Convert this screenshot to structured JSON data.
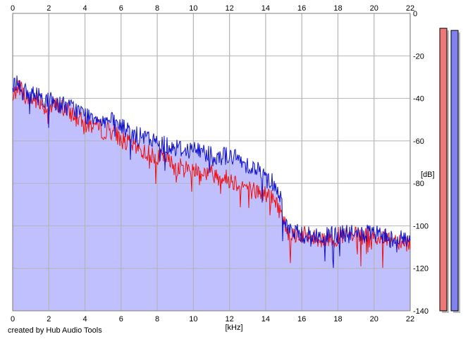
{
  "credit": "created by Hub Audio Tools",
  "colors": {
    "background": "#ffffff",
    "plot_background": "#ffffff",
    "grid": "#b4b4b4",
    "fill": "#c0c0ff",
    "left_channel": "#ee1111",
    "right_channel": "#1111cc",
    "left_meter": "#ee7777",
    "right_meter": "#8080ee",
    "meter_shadow": "#bdbdbd"
  },
  "chart_data": {
    "type": "line",
    "xlabel": "[kHz]",
    "ylabel": "[dB]",
    "xlim": [
      0,
      22
    ],
    "ylim": [
      -140,
      0
    ],
    "xticks": [
      "0",
      "2",
      "4",
      "6",
      "8",
      "10",
      "12",
      "14",
      "16",
      "18",
      "20",
      "22"
    ],
    "yticks": [
      "0",
      "-20",
      "-40",
      "-60",
      "-80",
      "-100",
      "-120",
      "-140"
    ],
    "grid": true,
    "legend": "none",
    "x": [
      0,
      0.25,
      0.5,
      0.75,
      1,
      1.5,
      2,
      2.5,
      3,
      3.5,
      4,
      4.5,
      5,
      5.5,
      6,
      6.5,
      7,
      7.5,
      8,
      8.5,
      9,
      9.5,
      10,
      10.5,
      11,
      11.5,
      12,
      12.5,
      13,
      13.5,
      14,
      14.5,
      14.8,
      15,
      15.2,
      15.5,
      16,
      16.5,
      17,
      17.5,
      18,
      18.5,
      19,
      19.5,
      20,
      20.5,
      21,
      21.5,
      22
    ],
    "series": [
      {
        "values": [
          -42,
          -33,
          -36,
          -40,
          -40,
          -42,
          -45,
          -43,
          -46,
          -48,
          -53,
          -52,
          -55,
          -55,
          -59,
          -62,
          -64,
          -66,
          -67,
          -69,
          -72,
          -73,
          -73,
          -75,
          -75,
          -77,
          -78,
          -80,
          -82,
          -84,
          -85,
          -88,
          -93,
          -98,
          -102,
          -104,
          -104,
          -106,
          -106,
          -106,
          -105,
          -105,
          -105,
          -105,
          -105,
          -106,
          -106,
          -107,
          -108
        ]
      },
      {
        "values": [
          -35,
          -31,
          -36,
          -38,
          -38,
          -39,
          -41,
          -42,
          -44,
          -45,
          -48,
          -48,
          -50,
          -51,
          -53,
          -56,
          -58,
          -59,
          -61,
          -62,
          -63,
          -64,
          -64,
          -65,
          -66,
          -67,
          -67,
          -69,
          -71,
          -73,
          -77,
          -80,
          -86,
          -94,
          -101,
          -103,
          -104,
          -105,
          -105,
          -105,
          -104,
          -104,
          -104,
          -104,
          -104,
          -105,
          -106,
          -106,
          -107
        ]
      }
    ],
    "meters": {
      "left_level_db": -7,
      "right_level_db": -8
    }
  }
}
